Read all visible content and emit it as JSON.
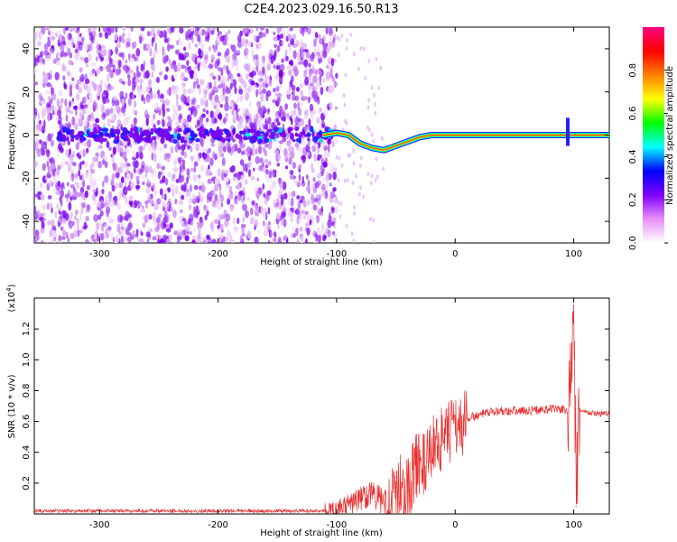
{
  "title": "C2E4.2023.029.16.50.R13",
  "chart_data": [
    {
      "type": "heatmap",
      "title": "C2E4.2023.029.16.50.R13",
      "xlabel": "Height of straight line (km)",
      "ylabel": "Frequency (Hz)",
      "xlim": [
        -355,
        130
      ],
      "ylim": [
        -50,
        50
      ],
      "x_ticks": [
        -300,
        -200,
        -100,
        0,
        100
      ],
      "x_tick_labels": [
        "-300",
        "-200",
        "-100",
        "0",
        "100"
      ],
      "y_ticks": [
        -40,
        -20,
        0,
        20,
        40
      ],
      "y_tick_labels": [
        "-40",
        "-20",
        "0",
        "20",
        "40"
      ],
      "grid": false,
      "colorbar": {
        "label": "Normalized spectral amplitude",
        "range": [
          0,
          1
        ],
        "ticks": [
          0.0,
          0.2,
          0.4,
          0.6,
          0.8
        ],
        "tick_labels": [
          "0.0",
          "0.2",
          "0.4",
          "0.6",
          "0.8"
        ],
        "colors": [
          "#ffffff",
          "#e890f8",
          "#7f00ff",
          "#0000ff",
          "#00ffff",
          "#00ff00",
          "#ffff00",
          "#ff8000",
          "#ff0000",
          "#ff0080"
        ]
      },
      "frequency_track": {
        "x": [
          -110,
          -100,
          -90,
          -80,
          -70,
          -60,
          -50,
          -40,
          -30,
          -20,
          -10,
          0,
          20,
          50,
          90,
          100,
          130
        ],
        "y": [
          0,
          1,
          0,
          -4,
          -6,
          -7,
          -5,
          -3,
          -1,
          0,
          0,
          0,
          0,
          0,
          0,
          0,
          0
        ]
      }
    },
    {
      "type": "line",
      "xlabel": "Height of straight line (km)",
      "ylabel": "SNR (10 * v/v)",
      "y_multiplier_label": "(x10",
      "y_multiplier_exp": "4",
      "y_multiplier_close": ")",
      "xlim": [
        -355,
        130
      ],
      "ylim": [
        0,
        1.4
      ],
      "x_ticks": [
        -300,
        -200,
        -100,
        0,
        100
      ],
      "x_tick_labels": [
        "-300",
        "-200",
        "-100",
        "0",
        "100"
      ],
      "y_ticks": [
        0.2,
        0.4,
        0.6,
        0.8,
        1.0,
        1.2
      ],
      "y_tick_labels": [
        "0.2",
        "0.4",
        "0.6",
        "0.8",
        "1.0",
        "1.2"
      ],
      "grid": false,
      "series": [
        {
          "color": "#e83030",
          "x": [
            -355,
            -300,
            -250,
            -200,
            -150,
            -110,
            -100,
            -90,
            -80,
            -70,
            -60,
            -50,
            -45,
            -40,
            -35,
            -30,
            -25,
            -20,
            -15,
            -10,
            -5,
            0,
            5,
            10,
            20,
            30,
            40,
            60,
            80,
            90,
            95,
            98,
            100,
            102,
            105,
            110,
            120,
            130
          ],
          "y": [
            0.02,
            0.02,
            0.02,
            0.02,
            0.02,
            0.02,
            0.03,
            0.06,
            0.1,
            0.14,
            0.06,
            0.1,
            0.2,
            0.15,
            0.28,
            0.35,
            0.3,
            0.42,
            0.5,
            0.46,
            0.52,
            0.6,
            0.56,
            0.62,
            0.64,
            0.66,
            0.67,
            0.67,
            0.68,
            0.68,
            0.66,
            0.9,
            1.35,
            0.05,
            0.68,
            0.66,
            0.65,
            0.65
          ]
        }
      ]
    }
  ]
}
